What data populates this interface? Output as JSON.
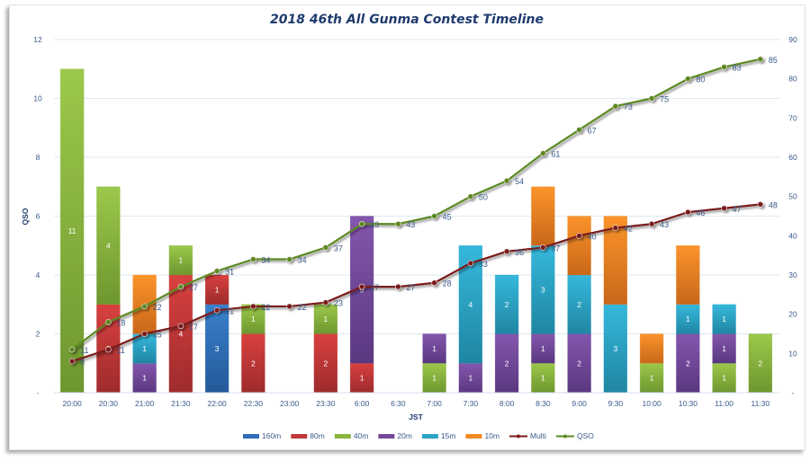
{
  "chart_data": {
    "type": "bar",
    "stacked": true,
    "title": "2018 46th All Gunma Contest Timeline",
    "xlabel": "JST",
    "ylabel": "QSO",
    "ylim": [
      0,
      12
    ],
    "y2lim": [
      0,
      90
    ],
    "yticks": [
      "-",
      "2",
      "4",
      "6",
      "8",
      "10",
      "12"
    ],
    "y2ticks": [
      "-",
      "10",
      "20",
      "30",
      "40",
      "50",
      "60",
      "70",
      "80",
      "90"
    ],
    "grid": true,
    "legend_position": "bottom",
    "categories": [
      "20:00",
      "20:30",
      "21:00",
      "21:30",
      "22:00",
      "22:30",
      "23:00",
      "23:30",
      "6:00",
      "6:30",
      "7:00",
      "7:30",
      "8:00",
      "8:30",
      "9:00",
      "9:30",
      "10:00",
      "10:30",
      "11:00",
      "11:30"
    ],
    "series": [
      {
        "name": "160m",
        "type": "bar",
        "color": "#2e6db5",
        "values": [
          0,
          0,
          0,
          0,
          3,
          0,
          0,
          0,
          0,
          0,
          0,
          0,
          0,
          0,
          0,
          0,
          0,
          0,
          0,
          0
        ],
        "labels_shown": true
      },
      {
        "name": "80m",
        "type": "bar",
        "color": "#c0393a",
        "values": [
          0,
          3,
          0,
          4,
          1,
          2,
          0,
          2,
          1,
          0,
          0,
          0,
          0,
          0,
          0,
          0,
          0,
          0,
          0,
          0
        ],
        "labels_shown": true
      },
      {
        "name": "40m",
        "type": "bar",
        "color": "#8ab43c",
        "values": [
          11,
          4,
          0,
          1,
          0,
          1,
          0,
          1,
          0,
          0,
          1,
          0,
          0,
          1,
          0,
          0,
          1,
          0,
          1,
          2
        ],
        "labels_shown": true
      },
      {
        "name": "20m",
        "type": "bar",
        "color": "#74499b",
        "values": [
          0,
          0,
          1,
          0,
          0,
          0,
          0,
          0,
          5,
          0,
          1,
          1,
          2,
          1,
          2,
          0,
          0,
          2,
          1,
          0
        ],
        "labels_shown": true
      },
      {
        "name": "15m",
        "type": "bar",
        "color": "#2aa5c6",
        "values": [
          0,
          0,
          1,
          0,
          0,
          0,
          0,
          0,
          0,
          0,
          0,
          4,
          2,
          3,
          2,
          3,
          0,
          1,
          1,
          0
        ],
        "labels_shown": true
      },
      {
        "name": "10m",
        "type": "bar",
        "color": "#f08a24",
        "values": [
          0,
          0,
          2,
          0,
          0,
          0,
          0,
          0,
          0,
          0,
          0,
          0,
          0,
          2,
          2,
          3,
          1,
          2,
          0,
          0
        ],
        "labels_shown": false
      },
      {
        "name": "Multi",
        "type": "line",
        "axis": "right",
        "color": "#7a1a1a",
        "values": [
          8,
          11,
          15,
          17,
          21,
          22,
          22,
          23,
          27,
          27,
          28,
          33,
          36,
          37,
          40,
          42,
          43,
          46,
          47,
          48
        ]
      },
      {
        "name": "QSO",
        "type": "line",
        "axis": "right",
        "color": "#5b8a22",
        "values": [
          11,
          18,
          22,
          27,
          31,
          34,
          34,
          37,
          43,
          43,
          45,
          50,
          54,
          61,
          67,
          73,
          75,
          80,
          83,
          85
        ]
      }
    ]
  }
}
